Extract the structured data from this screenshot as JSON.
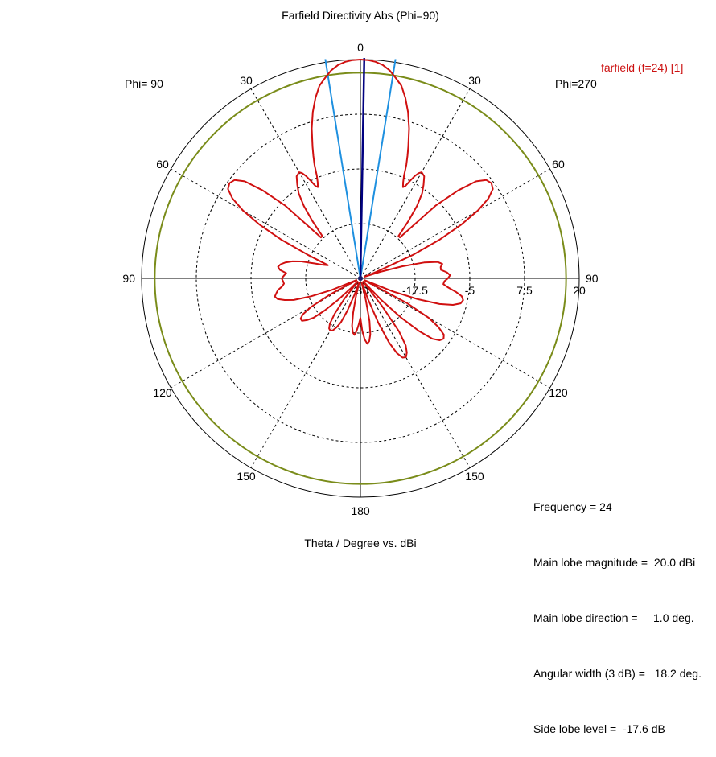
{
  "chart_data": {
    "type": "polar-line",
    "title": "Farfield Directivity Abs (Phi=90)",
    "xlabel": "Theta / Degree vs. dBi",
    "phi_left_label": "Phi= 90",
    "phi_right_label": "Phi=270",
    "angle_tick_labels": [
      "0",
      "30",
      "60",
      "90",
      "120",
      "150",
      "180",
      "150",
      "120",
      "90",
      "60",
      "30"
    ],
    "radial_range": [
      -30,
      20
    ],
    "radial_tick_values": [
      -30,
      -17.5,
      -5,
      7.5,
      20
    ],
    "radial_tick_labels": [
      "-30",
      "-17.5",
      "-5",
      "7.5",
      "20"
    ],
    "legend": "farfield (f=24) [1]",
    "colors": {
      "pattern": "#d01010",
      "level_3db": "#7a8c1a",
      "main_lobe": "#000080",
      "beamwidth": "#1e90e0"
    },
    "level_3db_value": 17.0,
    "main_lobe_direction_deg": 1.0,
    "beamwidth_deg": 18.2,
    "series": [
      {
        "name": "farfield (f=24) [1]",
        "theta": [
          0,
          2,
          4,
          6,
          8,
          10,
          12,
          14,
          16,
          18,
          20,
          21,
          22,
          23,
          24,
          25,
          26,
          27,
          28,
          29,
          30,
          32,
          34,
          36,
          38,
          40,
          42,
          44,
          46,
          48,
          50,
          52,
          54,
          56,
          58,
          60,
          62,
          64,
          66,
          68,
          70,
          72,
          74,
          76,
          78,
          80,
          82,
          84,
          86,
          88,
          90,
          92,
          94,
          96,
          98,
          100,
          102,
          104,
          106,
          108,
          110,
          112,
          114,
          116,
          118,
          120,
          122,
          124,
          126,
          128,
          130,
          132,
          134,
          136,
          138,
          140,
          142,
          144,
          146,
          148,
          150,
          152,
          154,
          156,
          158,
          160,
          162,
          164,
          166,
          168,
          170,
          172,
          174,
          176,
          178,
          180
        ],
        "right_side_db": [
          20,
          19.9,
          19.6,
          19,
          18,
          16.5,
          15,
          12.5,
          9.5,
          6,
          2,
          0,
          -2,
          -4.5,
          -6,
          -7,
          -6.5,
          -5,
          -3.5,
          -2.5,
          -2,
          -2.5,
          -4.2,
          -6,
          -9,
          -13,
          -17,
          -17,
          -6,
          0,
          4.5,
          6.5,
          7,
          6.5,
          4.5,
          1,
          -4,
          -10,
          -17,
          -26,
          -29,
          -25,
          -20,
          -15,
          -12,
          -11,
          -11.5,
          -11.5,
          -10.2,
          -9.5,
          -10,
          -10.8,
          -11,
          -9.8,
          -8,
          -6.5,
          -6,
          -6.4,
          -8,
          -11,
          -16,
          -22,
          -29,
          -29,
          -18,
          -12,
          -9,
          -7,
          -6.5,
          -7,
          -8.5,
          -12,
          -17,
          -23,
          -29,
          -29,
          -22,
          -15,
          -11.5,
          -10,
          -9.2,
          -9.5,
          -11,
          -14,
          -19,
          -25,
          -29,
          -29,
          -25,
          -20,
          -17,
          -15.5,
          -15,
          -16,
          -18,
          -21
        ],
        "left_side_db": [
          20,
          19.9,
          19.6,
          19,
          18,
          16.5,
          15,
          12.5,
          9.5,
          6,
          2,
          0,
          -2,
          -4.5,
          -6,
          -7,
          -6.5,
          -5,
          -3.5,
          -2.5,
          -2,
          -2.5,
          -4.2,
          -6,
          -9,
          -13,
          -17,
          -17,
          -6,
          0,
          4.5,
          6.5,
          7,
          6.5,
          4.5,
          1,
          -4,
          -10,
          -17,
          -22,
          -21,
          -19,
          -16,
          -14,
          -12.5,
          -11.5,
          -11,
          -11.5,
          -13,
          -12.5,
          -12,
          -12.3,
          -12.5,
          -12,
          -11,
          -10.5,
          -10,
          -10.5,
          -12,
          -14,
          -18,
          -23,
          -29,
          -29,
          -22,
          -17,
          -14.5,
          -13.5,
          -13.5,
          -14.5,
          -16,
          -19,
          -23,
          -27,
          -29,
          -29,
          -24,
          -20,
          -17.5,
          -16.5,
          -16.2,
          -16.5,
          -17.5,
          -19,
          -22,
          -26,
          -29,
          -29,
          -26,
          -22,
          -19,
          -17.5,
          -17,
          -18,
          -19.5,
          -21
        ]
      }
    ]
  },
  "info_box": {
    "frequency": "Frequency = 24",
    "main_lobe_magnitude": "Main lobe magnitude =  20.0 dBi",
    "main_lobe_direction": "Main lobe direction =     1.0 deg.",
    "angular_width": "Angular width (3 dB) =   18.2 deg.",
    "side_lobe_level": "Side lobe level =  -17.6 dB"
  }
}
